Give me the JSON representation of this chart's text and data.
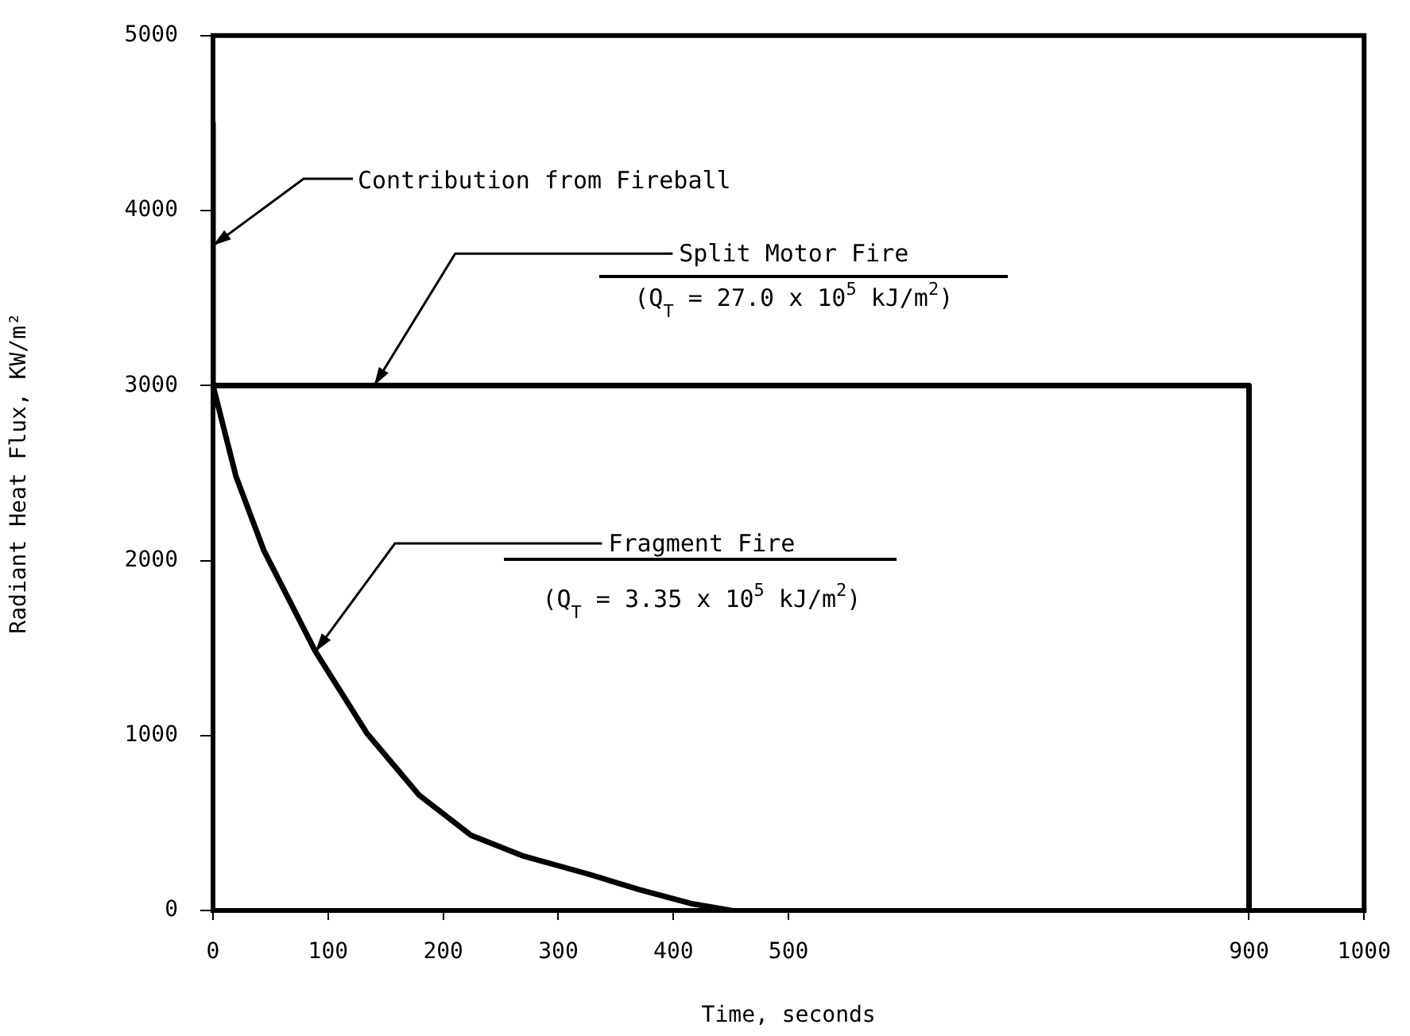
{
  "chart_data": {
    "type": "line",
    "xlabel": "Time, seconds",
    "ylabel": "Radiant Heat Flux, KW/m²",
    "xlim": [
      0,
      1000
    ],
    "xticks": [
      0,
      100,
      200,
      300,
      400,
      500,
      900,
      1000
    ],
    "ylim": [
      0,
      5000
    ],
    "yticks": [
      0,
      1000,
      2000,
      3000,
      4000,
      5000
    ],
    "marker": "none",
    "series": [
      {
        "color": "#000000",
        "x": [
          0,
          900,
          900
        ],
        "values": [
          3000,
          3000,
          0
        ]
      },
      {
        "color": "#000000",
        "x": [
          0,
          0,
          20,
          44,
          89,
          134,
          179,
          224,
          270,
          325,
          370,
          415,
          450
        ],
        "values": [
          4500,
          3000,
          2480,
          2060,
          1480,
          1010,
          660,
          430,
          310,
          210,
          120,
          40,
          0
        ]
      }
    ],
    "annotations": [
      {
        "text": "Contribution from Fireball",
        "x": 0,
        "y": 3800
      },
      {
        "text": "Split Motor Fire",
        "x": 140,
        "y": 3000
      },
      "(Q$_{T}$ = 27.0 x 10$^{5}$ kJ/m$^{2}$)",
      {
        "text": "Fragment Fire",
        "x": 89,
        "y": 1480
      },
      "(Q$_{T}$ = 3.35 x 10$^{5}$ kJ/m$^{2}$)"
    ]
  }
}
